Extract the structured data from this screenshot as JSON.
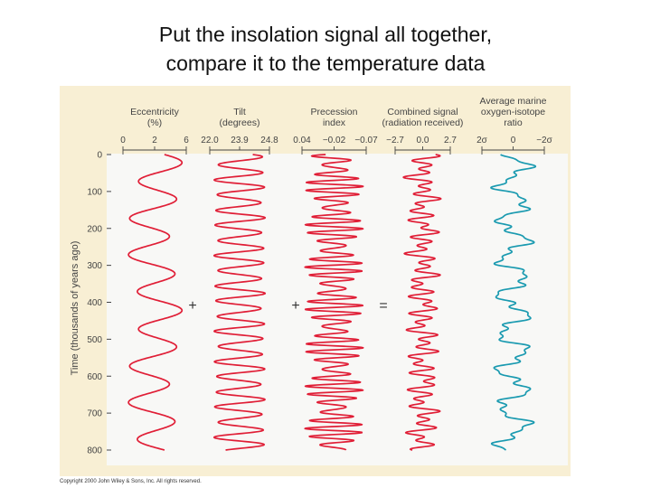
{
  "slide": {
    "title_line1": "Put the insolation signal all together,",
    "title_line2": "compare it to the temperature data"
  },
  "figure": {
    "copyright": "Copyright 2000 John Wiley & Sons, Inc. All rights reserved.",
    "operators": [
      "+",
      "+",
      "="
    ],
    "colors": {
      "panel_bg": "#f8efd4",
      "plot_bg": "#f8f8f6",
      "insolation_curve": "#e01e36",
      "isotope_curve": "#1a9ab0",
      "text": "#444444"
    }
  },
  "chart_data": {
    "type": "line",
    "title": "",
    "ylabel": "Time (thousands of years ago)",
    "ylim": [
      0,
      800
    ],
    "y_inverted": true,
    "y_ticks": [
      "0",
      "100",
      "200",
      "300",
      "400",
      "500",
      "600",
      "700",
      "800"
    ],
    "grid": false,
    "panels": [
      {
        "name_line1": "Eccentricity",
        "name_line2": "(%)",
        "ticks": [
          "0",
          "2",
          "6"
        ],
        "xlim": [
          0,
          6
        ],
        "color": "#e01e36",
        "curve": {
          "base": 3.0,
          "components": [
            {
              "amp": 2.0,
              "period": 100,
              "phase": 0.2
            },
            {
              "amp": 0.6,
              "period": 400,
              "phase": 1.1
            }
          ]
        }
      },
      {
        "name_line1": "Tilt",
        "name_line2": "(degrees)",
        "ticks": [
          "22.0",
          "23.9",
          "24.8"
        ],
        "xlim": [
          22.0,
          24.8
        ],
        "color": "#e01e36",
        "curve": {
          "base": 23.4,
          "components": [
            {
              "amp": 1.1,
              "period": 41,
              "phase": 0.5
            },
            {
              "amp": 0.1,
              "period": 29,
              "phase": 2.0
            }
          ]
        }
      },
      {
        "name_line1": "Precession",
        "name_line2": "index",
        "ticks": [
          "0.04",
          "−0.02",
          "−0.07"
        ],
        "xlim": [
          0.04,
          -0.07
        ],
        "color": "#e01e36",
        "curve": {
          "base": -0.015,
          "components": [
            {
              "amp": 0.035,
              "period": 23,
              "phase": 0.0
            },
            {
              "amp": 0.015,
              "period": 19,
              "phase": 1.3
            }
          ]
        }
      },
      {
        "name_line1": "Combined signal",
        "name_line2": "(radiation received)",
        "ticks": [
          "−2.7",
          "0.0",
          "2.7"
        ],
        "xlim": [
          -2.7,
          2.7
        ],
        "color": "#e01e36",
        "curve": {
          "base": 0.0,
          "components": [
            {
              "amp": 0.9,
              "period": 23,
              "phase": 0.4
            },
            {
              "amp": 0.6,
              "period": 41,
              "phase": 1.7
            },
            {
              "amp": 0.4,
              "period": 100,
              "phase": 0.9
            }
          ]
        }
      },
      {
        "name_line1": "Average marine",
        "name_line2": "oxygen-isotope",
        "name_line3": "ratio",
        "ticks": [
          "2σ",
          "0",
          "−2σ"
        ],
        "xlim": [
          2,
          -2
        ],
        "color": "#1a9ab0",
        "curve": {
          "base": 0.0,
          "components": [
            {
              "amp": 0.9,
              "period": 100,
              "phase": 2.6
            },
            {
              "amp": 0.35,
              "period": 41,
              "phase": 0.3
            },
            {
              "amp": 0.25,
              "period": 23,
              "phase": 1.9
            }
          ]
        }
      }
    ]
  }
}
